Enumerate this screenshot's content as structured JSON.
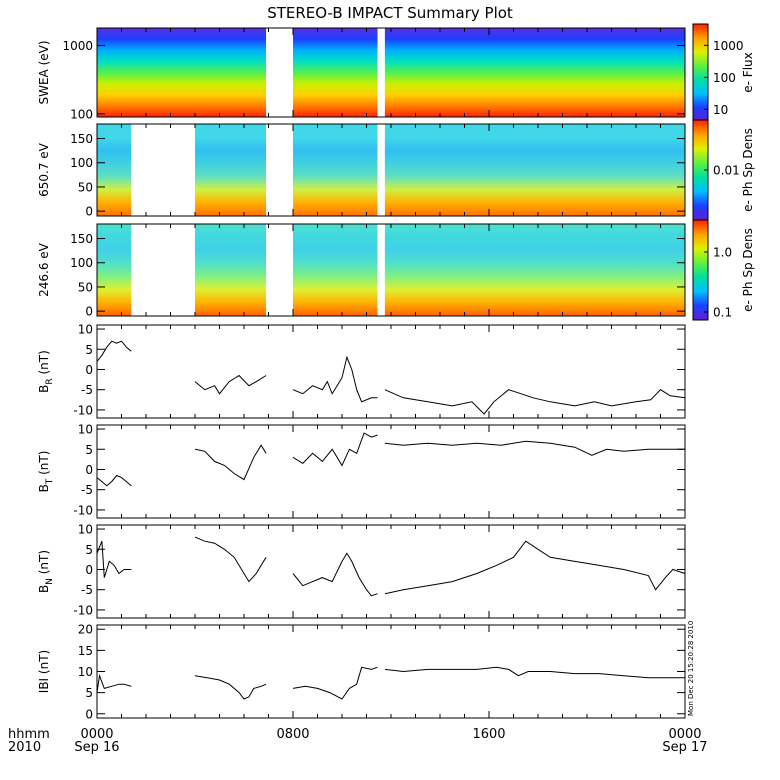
{
  "title": "STEREO-B IMPACT Summary Plot",
  "chart_data": {
    "type": "multi-panel time series",
    "title": "STEREO-B IMPACT Summary Plot",
    "x_range_hours": [
      0,
      24
    ],
    "x_ticks": [
      {
        "hour": 0,
        "label": "0000",
        "sublabel": "Sep 16"
      },
      {
        "hour": 8,
        "label": "0800",
        "sublabel": ""
      },
      {
        "hour": 16,
        "label": "1600",
        "sublabel": ""
      },
      {
        "hour": 24,
        "label": "0000",
        "sublabel": "Sep 17"
      }
    ],
    "x_axis_label": "hhmm",
    "x_axis_year": "2010",
    "timestamp": "Mon Dec 20 15:20:28 2010",
    "spectrograms": [
      {
        "name": "SWEA",
        "ylabel": "SWEA (eV)",
        "y_scale": "log",
        "y_range": [
          90,
          1800
        ],
        "y_ticks": [
          {
            "value": 100,
            "label": "100"
          },
          {
            "value": 1000,
            "label": "1000"
          }
        ],
        "colorbar_label": "e- Flux",
        "colorbar_ticks": [
          {
            "label": "1000"
          },
          {
            "label": "100"
          },
          {
            "label": "10"
          }
        ],
        "gaps_hours": [
          [
            6.9,
            8.0
          ],
          [
            11.45,
            11.75
          ]
        ],
        "gradient": [
          "#5a30e0",
          "#1a40ff",
          "#00b0ff",
          "#00e0c0",
          "#50f050",
          "#c8f000",
          "#ffd000",
          "#ff8000",
          "#ff2000"
        ]
      },
      {
        "name": "650.7 eV",
        "ylabel": "650.7 eV",
        "y_scale": "linear",
        "y_range": [
          -10,
          180
        ],
        "y_ticks": [
          {
            "value": 0,
            "label": "0"
          },
          {
            "value": 50,
            "label": "50"
          },
          {
            "value": 100,
            "label": "100"
          },
          {
            "value": 150,
            "label": "150"
          }
        ],
        "colorbar_label": "e- Ph Sp Dens",
        "colorbar_ticks": [
          {
            "label": "0.01"
          }
        ],
        "gaps_hours": [
          [
            1.4,
            4.0
          ],
          [
            6.9,
            8.0
          ],
          [
            11.45,
            11.75
          ]
        ],
        "gradient": [
          "#40d8e8",
          "#40d8e8",
          "#30c0f0",
          "#40d0e0",
          "#60e0c0",
          "#d0f040",
          "#ffb000",
          "#ff7000"
        ]
      },
      {
        "name": "246.6 eV",
        "ylabel": "246.6 eV",
        "y_scale": "linear",
        "y_range": [
          -10,
          180
        ],
        "y_ticks": [
          {
            "value": 0,
            "label": "0"
          },
          {
            "value": 50,
            "label": "50"
          },
          {
            "value": 100,
            "label": "100"
          },
          {
            "value": 150,
            "label": "150"
          }
        ],
        "colorbar_label": "e- Ph Sp Dens",
        "colorbar_ticks": [
          {
            "label": "1.0"
          },
          {
            "label": "0.1"
          }
        ],
        "gaps_hours": [
          [
            1.4,
            4.0
          ],
          [
            6.9,
            8.0
          ],
          [
            11.45,
            11.75
          ]
        ],
        "gradient": [
          "#50e0d0",
          "#40d8e0",
          "#40d0e8",
          "#50e0c8",
          "#80f080",
          "#e0f030",
          "#ffb000",
          "#ff6000"
        ]
      }
    ],
    "line_panels": [
      {
        "name": "BR",
        "ylabel": "B",
        "ylabel_sub": "R",
        "ylabel_unit": "(nT)",
        "y_range": [
          -12,
          11
        ],
        "y_ticks": [
          {
            "value": -10,
            "label": "-10"
          },
          {
            "value": -5,
            "label": "-5"
          },
          {
            "value": 0,
            "label": "0"
          },
          {
            "value": 5,
            "label": "5"
          },
          {
            "value": 10,
            "label": "10"
          }
        ],
        "segments": [
          [
            [
              0,
              2
            ],
            [
              0.2,
              3.5
            ],
            [
              0.4,
              5.5
            ],
            [
              0.6,
              7
            ],
            [
              0.8,
              6.5
            ],
            [
              1.0,
              7
            ],
            [
              1.2,
              5.5
            ],
            [
              1.4,
              4.5
            ]
          ],
          [
            [
              4.0,
              -3
            ],
            [
              4.4,
              -5
            ],
            [
              4.8,
              -4
            ],
            [
              5.0,
              -6
            ],
            [
              5.4,
              -3
            ],
            [
              5.8,
              -1.5
            ],
            [
              6.2,
              -4
            ],
            [
              6.5,
              -3
            ],
            [
              6.9,
              -1.5
            ]
          ],
          [
            [
              8.0,
              -5
            ],
            [
              8.4,
              -6
            ],
            [
              8.8,
              -4
            ],
            [
              9.2,
              -5
            ],
            [
              9.4,
              -3
            ],
            [
              9.6,
              -6
            ],
            [
              9.8,
              -4
            ],
            [
              10.0,
              -2
            ],
            [
              10.2,
              3
            ],
            [
              10.4,
              0
            ],
            [
              10.6,
              -5
            ],
            [
              10.8,
              -8
            ],
            [
              11.2,
              -7
            ],
            [
              11.45,
              -7
            ]
          ],
          [
            [
              11.75,
              -5
            ],
            [
              12.5,
              -7
            ],
            [
              13.5,
              -8
            ],
            [
              14.5,
              -9
            ],
            [
              15.3,
              -8
            ],
            [
              15.8,
              -11
            ],
            [
              16.2,
              -8
            ],
            [
              16.8,
              -5
            ],
            [
              17.3,
              -6
            ],
            [
              17.8,
              -7
            ],
            [
              18.5,
              -8
            ],
            [
              19.5,
              -9
            ],
            [
              20.3,
              -8
            ],
            [
              21.0,
              -9
            ],
            [
              22.0,
              -8
            ],
            [
              22.6,
              -7.5
            ],
            [
              23.0,
              -5
            ],
            [
              23.4,
              -6.5
            ],
            [
              24,
              -7
            ]
          ]
        ]
      },
      {
        "name": "BT",
        "ylabel": "B",
        "ylabel_sub": "T",
        "ylabel_unit": "(nT)",
        "y_range": [
          -12,
          11
        ],
        "y_ticks": [
          {
            "value": -10,
            "label": "-10"
          },
          {
            "value": -5,
            "label": "-5"
          },
          {
            "value": 0,
            "label": "0"
          },
          {
            "value": 5,
            "label": "5"
          },
          {
            "value": 10,
            "label": "10"
          }
        ],
        "segments": [
          [
            [
              0,
              -2
            ],
            [
              0.2,
              -3
            ],
            [
              0.4,
              -4
            ],
            [
              0.6,
              -3
            ],
            [
              0.8,
              -1.5
            ],
            [
              1.0,
              -2
            ],
            [
              1.2,
              -3
            ],
            [
              1.4,
              -4
            ]
          ],
          [
            [
              4.0,
              5
            ],
            [
              4.4,
              4.5
            ],
            [
              4.8,
              2
            ],
            [
              5.2,
              1
            ],
            [
              5.6,
              -1
            ],
            [
              6.0,
              -2.5
            ],
            [
              6.4,
              3
            ],
            [
              6.7,
              6
            ],
            [
              6.9,
              4
            ]
          ],
          [
            [
              8.0,
              3
            ],
            [
              8.4,
              1.5
            ],
            [
              8.8,
              4
            ],
            [
              9.2,
              2
            ],
            [
              9.6,
              5
            ],
            [
              10.0,
              1
            ],
            [
              10.3,
              5
            ],
            [
              10.6,
              4
            ],
            [
              10.9,
              9
            ],
            [
              11.2,
              8
            ],
            [
              11.45,
              8.5
            ]
          ],
          [
            [
              11.75,
              6.5
            ],
            [
              12.5,
              6
            ],
            [
              13.5,
              6.5
            ],
            [
              14.5,
              6
            ],
            [
              15.5,
              6.5
            ],
            [
              16.5,
              6
            ],
            [
              17.5,
              7
            ],
            [
              18.5,
              6.5
            ],
            [
              19.5,
              5.5
            ],
            [
              20.2,
              3.5
            ],
            [
              20.8,
              5
            ],
            [
              21.5,
              4.5
            ],
            [
              22.5,
              5
            ],
            [
              23.3,
              5
            ],
            [
              24,
              5
            ]
          ]
        ]
      },
      {
        "name": "BN",
        "ylabel": "B",
        "ylabel_sub": "N",
        "ylabel_unit": "(nT)",
        "y_range": [
          -12,
          11
        ],
        "y_ticks": [
          {
            "value": -10,
            "label": "-10"
          },
          {
            "value": -5,
            "label": "-5"
          },
          {
            "value": 0,
            "label": "0"
          },
          {
            "value": 5,
            "label": "5"
          },
          {
            "value": 10,
            "label": "10"
          }
        ],
        "segments": [
          [
            [
              0,
              4
            ],
            [
              0.2,
              7
            ],
            [
              0.3,
              -2
            ],
            [
              0.5,
              2
            ],
            [
              0.7,
              1
            ],
            [
              0.9,
              -1
            ],
            [
              1.1,
              0
            ],
            [
              1.4,
              0
            ]
          ],
          [
            [
              4.0,
              8
            ],
            [
              4.4,
              7
            ],
            [
              4.8,
              6.5
            ],
            [
              5.2,
              5
            ],
            [
              5.6,
              3
            ],
            [
              6.0,
              -1
            ],
            [
              6.2,
              -3
            ],
            [
              6.5,
              -1
            ],
            [
              6.7,
              1
            ],
            [
              6.9,
              3
            ]
          ],
          [
            [
              8.0,
              -1
            ],
            [
              8.4,
              -4
            ],
            [
              8.8,
              -3
            ],
            [
              9.2,
              -2
            ],
            [
              9.6,
              -3
            ],
            [
              10.0,
              2
            ],
            [
              10.2,
              4
            ],
            [
              10.4,
              2
            ],
            [
              10.7,
              -2
            ],
            [
              11.0,
              -5
            ],
            [
              11.2,
              -6.5
            ],
            [
              11.45,
              -6
            ]
          ],
          [
            [
              11.75,
              -6
            ],
            [
              12.5,
              -5
            ],
            [
              13.5,
              -4
            ],
            [
              14.5,
              -3
            ],
            [
              15.5,
              -1
            ],
            [
              16.3,
              1
            ],
            [
              17.0,
              3
            ],
            [
              17.5,
              7
            ],
            [
              18.0,
              5
            ],
            [
              18.5,
              3
            ],
            [
              19.5,
              2
            ],
            [
              20.5,
              1
            ],
            [
              21.5,
              0
            ],
            [
              22.5,
              -1.5
            ],
            [
              22.8,
              -5
            ],
            [
              23.2,
              -2
            ],
            [
              23.5,
              0
            ],
            [
              24,
              -1
            ]
          ]
        ]
      },
      {
        "name": "B",
        "ylabel": "IBI",
        "ylabel_sub": "",
        "ylabel_unit": "(nT)",
        "y_range": [
          -1,
          21
        ],
        "y_ticks": [
          {
            "value": 0,
            "label": "0"
          },
          {
            "value": 5,
            "label": "5"
          },
          {
            "value": 10,
            "label": "10"
          },
          {
            "value": 15,
            "label": "15"
          },
          {
            "value": 20,
            "label": "20"
          }
        ],
        "segments": [
          [
            [
              0,
              5
            ],
            [
              0.1,
              9
            ],
            [
              0.3,
              6
            ],
            [
              0.6,
              6.5
            ],
            [
              0.9,
              7
            ],
            [
              1.1,
              7
            ],
            [
              1.4,
              6.5
            ]
          ],
          [
            [
              4.0,
              9
            ],
            [
              4.5,
              8.5
            ],
            [
              5.0,
              8
            ],
            [
              5.4,
              7
            ],
            [
              5.8,
              5
            ],
            [
              6.0,
              3.5
            ],
            [
              6.2,
              4
            ],
            [
              6.4,
              6
            ],
            [
              6.7,
              6.5
            ],
            [
              6.9,
              7
            ]
          ],
          [
            [
              8.0,
              6
            ],
            [
              8.5,
              6.5
            ],
            [
              9.0,
              6
            ],
            [
              9.5,
              5
            ],
            [
              10.0,
              3.5
            ],
            [
              10.3,
              6
            ],
            [
              10.6,
              7
            ],
            [
              10.8,
              11
            ],
            [
              11.2,
              10.5
            ],
            [
              11.45,
              11
            ]
          ],
          [
            [
              11.75,
              10.5
            ],
            [
              12.5,
              10
            ],
            [
              13.5,
              10.5
            ],
            [
              14.5,
              10.5
            ],
            [
              15.5,
              10.5
            ],
            [
              16.3,
              11
            ],
            [
              16.8,
              10.5
            ],
            [
              17.2,
              9
            ],
            [
              17.6,
              10
            ],
            [
              18.5,
              10
            ],
            [
              19.5,
              9.5
            ],
            [
              20.5,
              9.5
            ],
            [
              21.5,
              9
            ],
            [
              22.5,
              8.5
            ],
            [
              23.5,
              8.5
            ],
            [
              24,
              8.5
            ]
          ]
        ]
      }
    ]
  }
}
